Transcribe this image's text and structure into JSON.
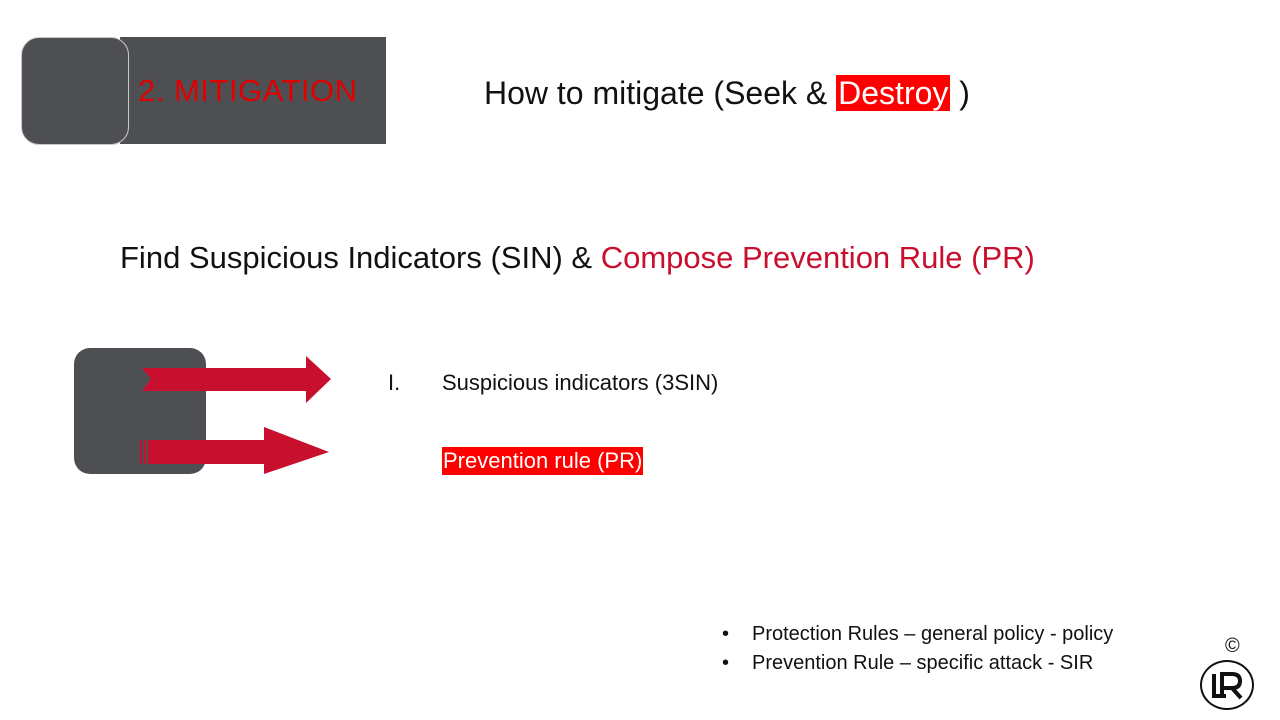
{
  "section_header": {
    "label": "2. MITIGATION"
  },
  "title": {
    "prefix": "How to mitigate (Seek & ",
    "highlight": "Destroy",
    "suffix": " )"
  },
  "subtitle": {
    "prefix": "Find Suspicious Indicators (SIN) & ",
    "accent": "Compose Prevention Rule (PR)"
  },
  "items": [
    {
      "marker": "I.",
      "text": "Suspicious indicators  (3SIN)"
    },
    {
      "text": "Prevention rule (PR)"
    }
  ],
  "notes": [
    {
      "bullet": "•",
      "text": "Protection Rules – general policy  - policy"
    },
    {
      "bullet": "•",
      "text": "Prevention Rule – specific attack - SIR"
    }
  ],
  "footer": {
    "copyright": "©"
  },
  "colors": {
    "dark_gray": "#4e4f53",
    "red": "#ff0000",
    "crimson": "#c8102e"
  },
  "icons": {
    "logo": "lr-logo-icon",
    "arrows": "right-arrow-icon"
  }
}
